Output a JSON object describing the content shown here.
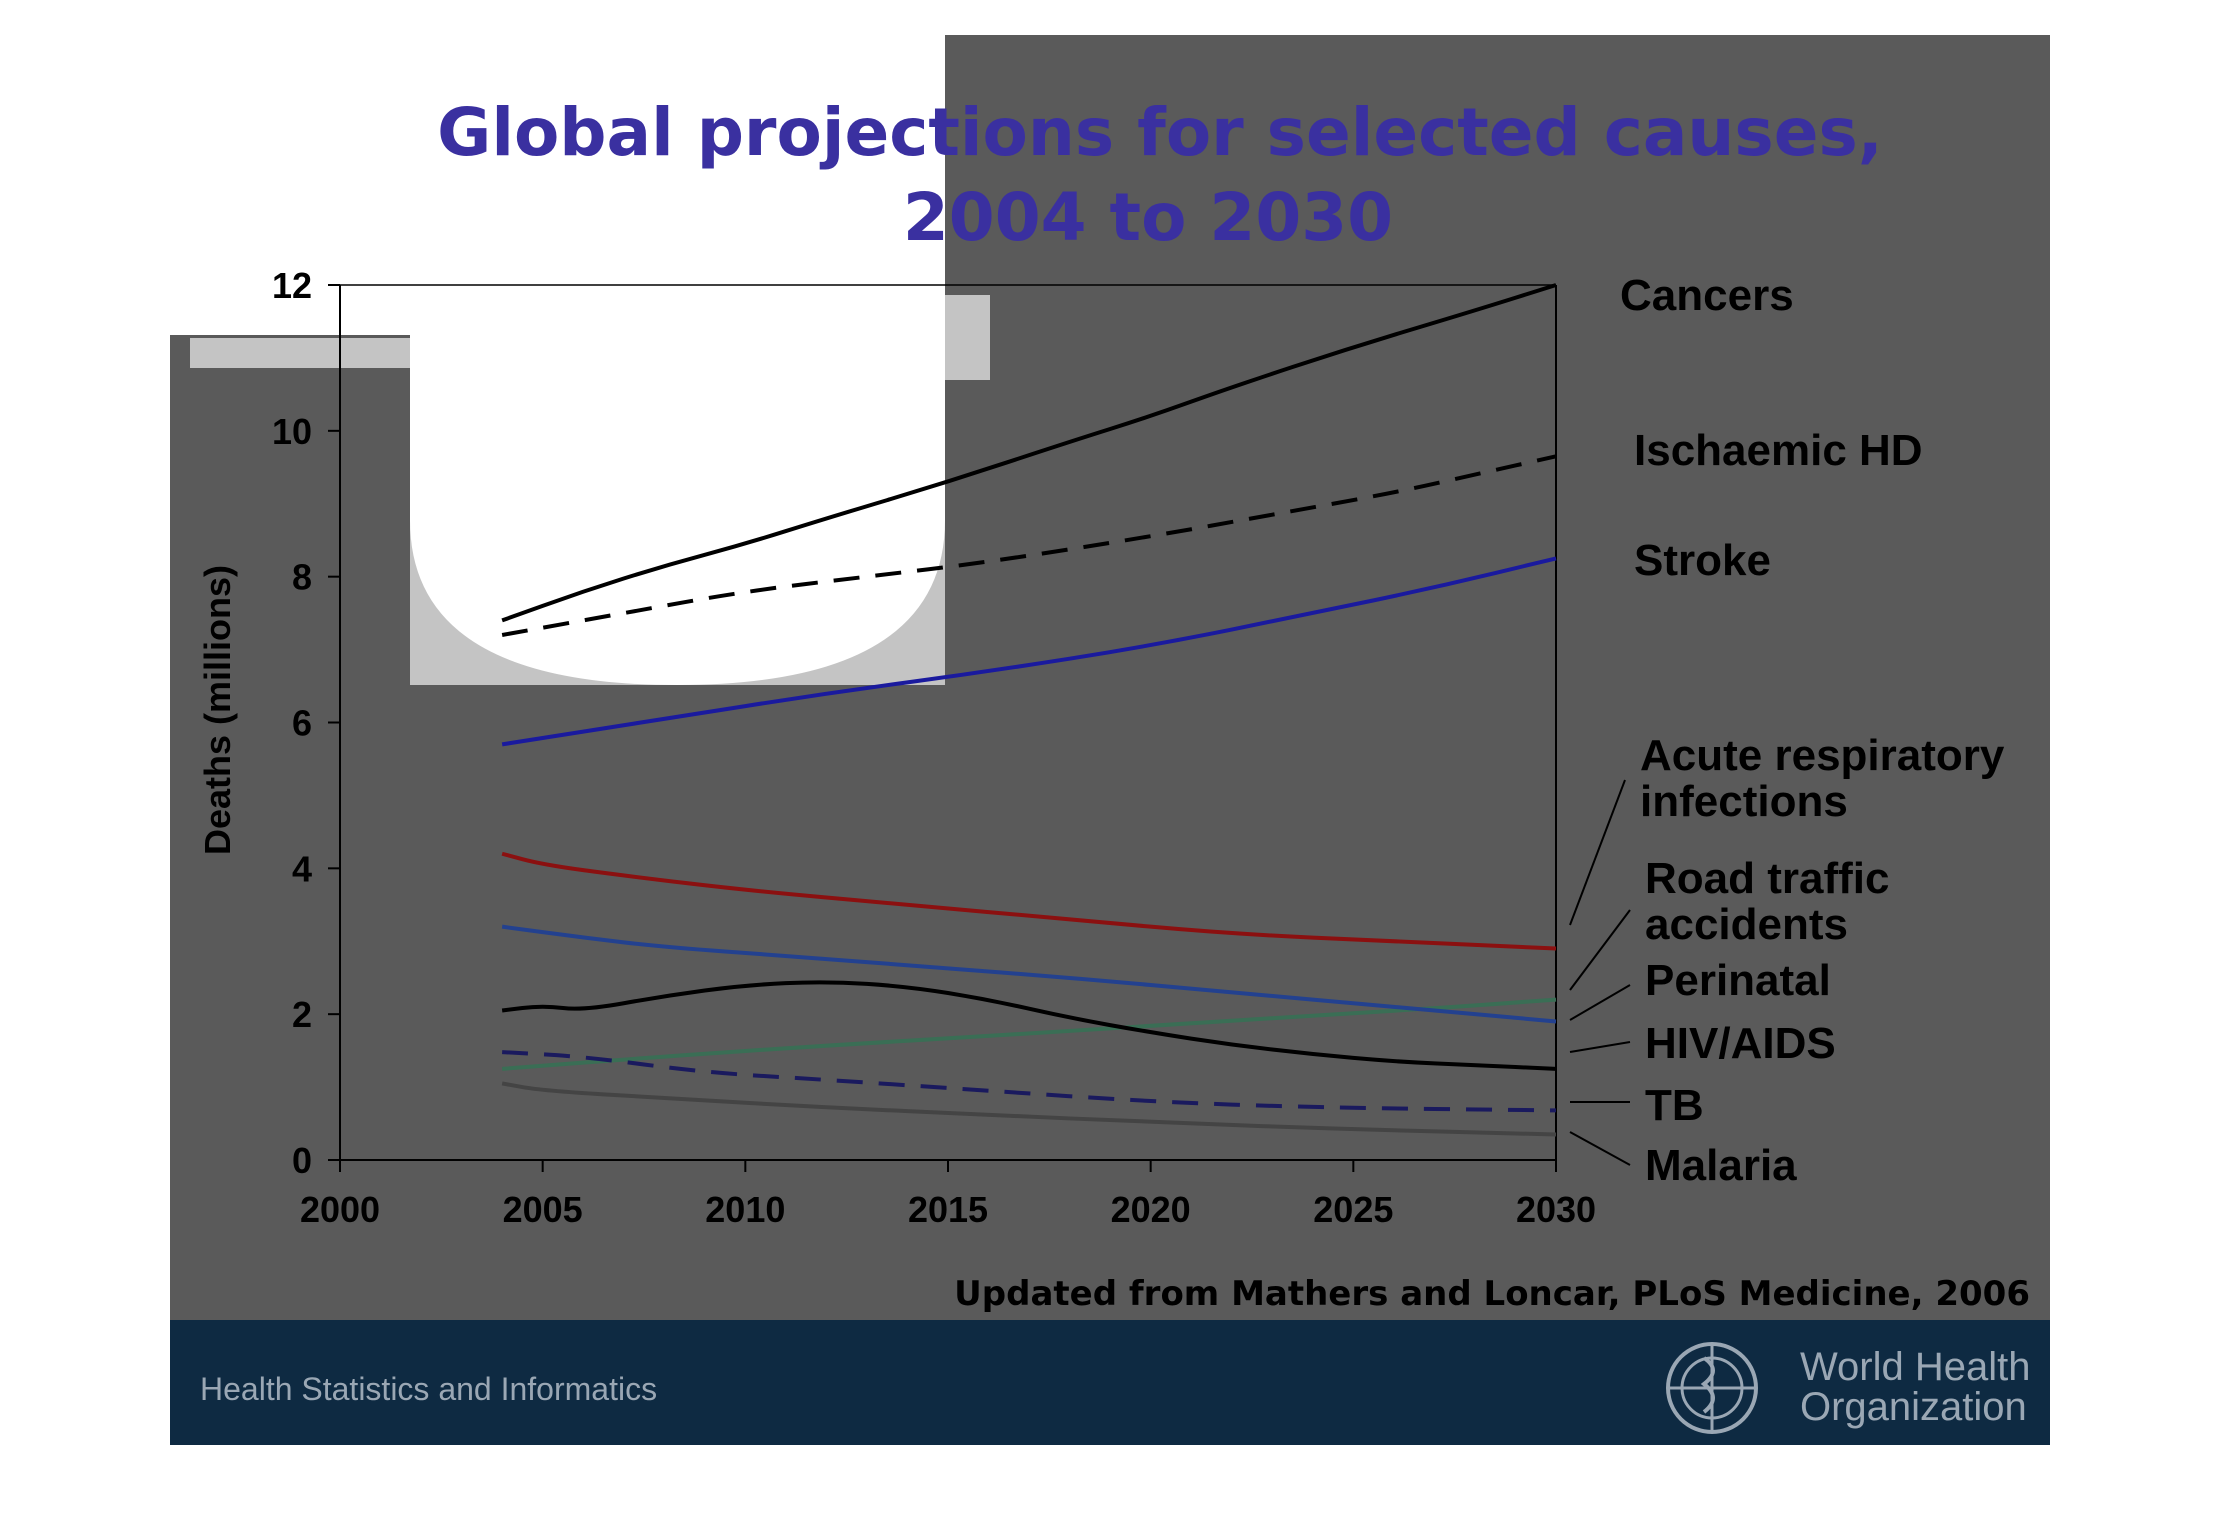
{
  "title_lines": [
    "Global projections for selected causes,",
    "2004 to 2030"
  ],
  "source_note": "Updated from Mathers and Loncar, PLoS Medicine, 2006",
  "footer": {
    "left_text": "Health Statistics and Informatics",
    "org_line1": "World Health",
    "org_line2": "Organization",
    "bar_color": "#0e2a42"
  },
  "chart_data": {
    "type": "line",
    "ylabel": "Deaths (millions)",
    "xlabel": "",
    "xlim": [
      2000,
      2030
    ],
    "ylim": [
      0,
      12
    ],
    "x_ticks": [
      "2000",
      "2005",
      "2010",
      "2015",
      "2020",
      "2025",
      "2030"
    ],
    "y_ticks": [
      "0",
      "2",
      "4",
      "6",
      "8",
      "10",
      "12"
    ],
    "grid": false,
    "legend": "inline-right",
    "series": [
      {
        "name": "Cancers",
        "label_lines": [
          "Cancers"
        ],
        "color": "#000000",
        "dashed": false,
        "x": [
          2004,
          2006,
          2008,
          2010,
          2012,
          2015,
          2018,
          2020,
          2022,
          2025,
          2028,
          2030
        ],
        "y": [
          7.4,
          7.8,
          8.15,
          8.45,
          8.8,
          9.3,
          9.85,
          10.2,
          10.6,
          11.15,
          11.65,
          12.0
        ]
      },
      {
        "name": "Ischaemic HD",
        "label_lines": [
          "Ischaemic HD"
        ],
        "color": "#000000",
        "dashed": true,
        "x": [
          2004,
          2007,
          2010,
          2013,
          2016,
          2020,
          2023,
          2026,
          2028,
          2030
        ],
        "y": [
          7.2,
          7.5,
          7.8,
          8.0,
          8.2,
          8.55,
          8.85,
          9.15,
          9.4,
          9.65
        ]
      },
      {
        "name": "Stroke",
        "label_lines": [
          "Stroke"
        ],
        "color": "#1a1a9e",
        "dashed": false,
        "x": [
          2004,
          2008,
          2012,
          2016,
          2020,
          2024,
          2027,
          2030
        ],
        "y": [
          5.7,
          6.05,
          6.4,
          6.7,
          7.05,
          7.5,
          7.85,
          8.25
        ]
      },
      {
        "name": "Acute respiratory infections",
        "label_lines": [
          "Acute respiratory",
          "infections"
        ],
        "color": "#8b1010",
        "dashed": false,
        "x": [
          2004,
          2005,
          2007,
          2010,
          2014,
          2018,
          2022,
          2026,
          2030
        ],
        "y": [
          4.2,
          4.05,
          3.9,
          3.7,
          3.5,
          3.3,
          3.1,
          3.0,
          2.9
        ]
      },
      {
        "name": "Road traffic accidents",
        "label_lines": [
          "Road traffic",
          "accidents"
        ],
        "color": "#3a6e55",
        "dashed": false,
        "x": [
          2004,
          2008,
          2012,
          2016,
          2020,
          2024,
          2027,
          2030
        ],
        "y": [
          1.25,
          1.42,
          1.57,
          1.7,
          1.84,
          1.98,
          2.08,
          2.2
        ]
      },
      {
        "name": "Perinatal",
        "label_lines": [
          "Perinatal"
        ],
        "color": "#23418f",
        "dashed": false,
        "x": [
          2004,
          2006,
          2008,
          2011,
          2014,
          2018,
          2022,
          2026,
          2030
        ],
        "y": [
          3.2,
          3.05,
          2.92,
          2.8,
          2.67,
          2.5,
          2.3,
          2.1,
          1.9
        ]
      },
      {
        "name": "HIV/AIDS",
        "label_lines": [
          "HIV/AIDS"
        ],
        "color": "#000000",
        "dashed": false,
        "x": [
          2004,
          2005,
          2006,
          2008,
          2010,
          2012,
          2014,
          2016,
          2018,
          2020,
          2022,
          2024,
          2026,
          2028,
          2030
        ],
        "y": [
          2.05,
          2.12,
          2.05,
          2.25,
          2.4,
          2.45,
          2.38,
          2.2,
          1.95,
          1.75,
          1.58,
          1.45,
          1.35,
          1.3,
          1.25
        ]
      },
      {
        "name": "TB",
        "label_lines": [
          "TB"
        ],
        "color": "#1a1a5e",
        "dashed": true,
        "x": [
          2004,
          2006,
          2009,
          2012,
          2016,
          2020,
          2024,
          2030
        ],
        "y": [
          1.48,
          1.42,
          1.2,
          1.1,
          0.95,
          0.8,
          0.72,
          0.68
        ]
      },
      {
        "name": "Malaria",
        "label_lines": [
          "Malaria"
        ],
        "color": "#444444",
        "dashed": false,
        "x": [
          2004,
          2005,
          2008,
          2012,
          2016,
          2020,
          2025,
          2030
        ],
        "y": [
          1.05,
          0.95,
          0.85,
          0.72,
          0.62,
          0.52,
          0.42,
          0.35
        ]
      }
    ]
  }
}
